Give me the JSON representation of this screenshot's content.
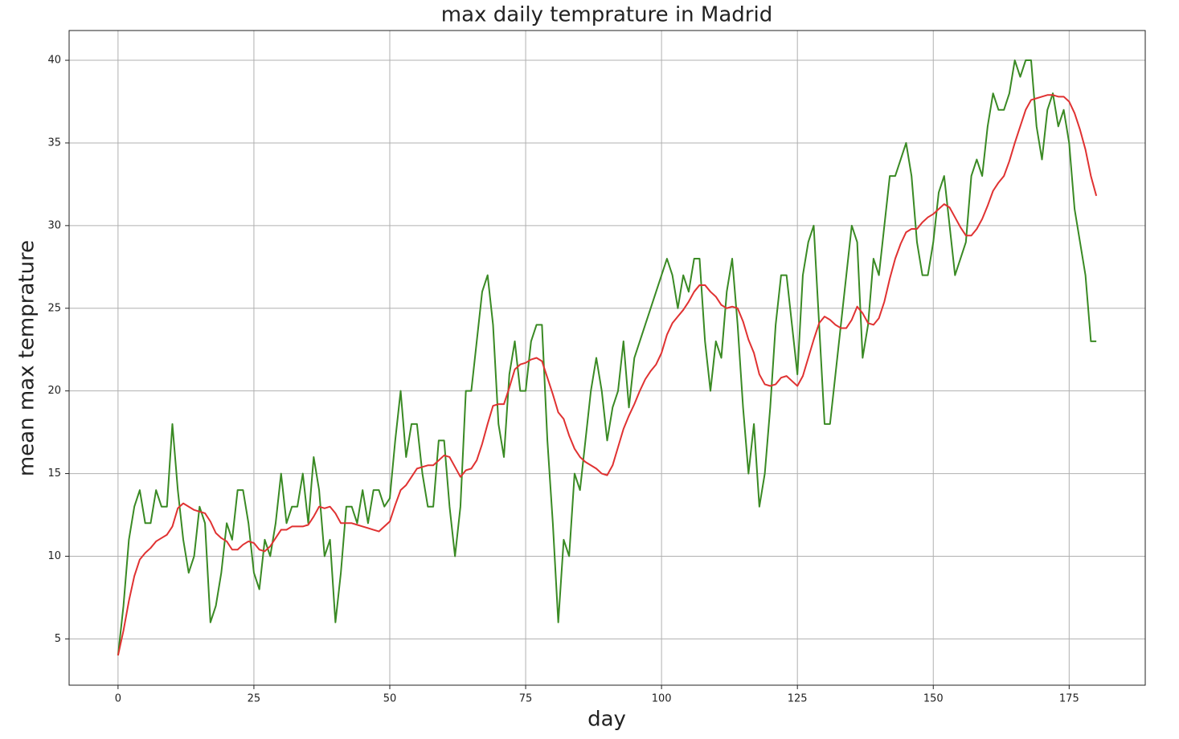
{
  "chart_data": {
    "type": "line",
    "title": "max daily temprature in Madrid",
    "x_label": "day",
    "y_label": "mean max temprature",
    "x": [
      0,
      1,
      2,
      3,
      4,
      5,
      6,
      7,
      8,
      9,
      10,
      11,
      12,
      13,
      14,
      15,
      16,
      17,
      18,
      19,
      20,
      21,
      22,
      23,
      24,
      25,
      26,
      27,
      28,
      29,
      30,
      31,
      32,
      33,
      34,
      35,
      36,
      37,
      38,
      39,
      40,
      41,
      42,
      43,
      44,
      45,
      46,
      47,
      48,
      49,
      50,
      51,
      52,
      53,
      54,
      55,
      56,
      57,
      58,
      59,
      60,
      61,
      62,
      63,
      64,
      65,
      66,
      67,
      68,
      69,
      70,
      71,
      72,
      73,
      74,
      75,
      76,
      77,
      78,
      79,
      80,
      81,
      82,
      83,
      84,
      85,
      86,
      87,
      88,
      89,
      90,
      91,
      92,
      93,
      94,
      95,
      96,
      97,
      98,
      99,
      100,
      101,
      102,
      103,
      104,
      105,
      106,
      107,
      108,
      109,
      110,
      111,
      112,
      113,
      114,
      115,
      116,
      117,
      118,
      119,
      120,
      121,
      122,
      123,
      124,
      125,
      126,
      127,
      128,
      129,
      130,
      131,
      132,
      133,
      134,
      135,
      136,
      137,
      138,
      139,
      140,
      141,
      142,
      143,
      144,
      145,
      146,
      147,
      148,
      149,
      150,
      151,
      152,
      153,
      154,
      155,
      156,
      157,
      158,
      159,
      160,
      161,
      162,
      163,
      164,
      165,
      166,
      167,
      168,
      169,
      170,
      171,
      172,
      173,
      174,
      175,
      176,
      177,
      178,
      179,
      180
    ],
    "series": [
      {
        "color": "#3a8a24",
        "values": [
          4,
          7,
          11,
          13,
          14,
          12,
          12,
          14,
          13,
          13,
          18,
          14,
          11,
          9,
          10,
          13,
          12,
          6,
          7,
          9,
          12,
          11,
          14,
          14,
          12,
          9,
          8,
          11,
          10,
          12,
          15,
          12,
          13,
          13,
          15,
          12,
          16,
          14,
          10,
          11,
          6,
          9,
          13,
          13,
          12,
          14,
          12,
          14,
          14,
          13,
          13.5,
          17,
          20,
          16,
          18,
          18,
          15,
          13,
          13,
          17,
          17,
          13,
          10,
          13,
          20,
          20,
          23,
          26,
          27,
          24,
          18,
          16,
          21,
          23,
          20,
          20,
          23,
          24,
          24,
          17,
          12,
          6,
          11,
          10,
          15,
          14,
          17,
          20,
          22,
          20,
          17,
          19,
          20,
          23,
          19,
          22,
          23,
          24,
          25,
          26,
          27,
          28,
          27,
          25,
          27,
          26,
          28,
          28,
          23,
          20,
          23,
          22,
          26,
          28,
          24,
          19,
          15,
          18,
          13,
          15,
          19,
          24,
          27,
          27,
          24,
          21,
          27,
          29,
          30,
          24,
          18,
          18,
          21,
          24,
          27,
          30,
          29,
          22,
          24,
          28,
          27,
          30,
          33,
          33,
          34,
          35,
          33,
          29,
          27,
          27,
          29,
          32,
          33,
          30,
          27,
          28,
          29,
          33,
          34,
          33,
          36,
          38,
          37,
          37,
          38,
          40,
          39,
          40,
          40,
          36,
          34,
          37,
          38,
          36,
          37,
          35,
          31,
          29,
          27,
          23,
          23
        ]
      },
      {
        "color": "#e03232",
        "values": [
          4,
          5.5,
          7.3,
          8.8,
          9.8,
          10.2,
          10.5,
          10.9,
          11.1,
          11.3,
          11.8,
          12.9,
          13.2,
          13,
          12.8,
          12.7,
          12.6,
          12.1,
          11.4,
          11.1,
          10.9,
          10.4,
          10.4,
          10.7,
          10.9,
          10.8,
          10.4,
          10.3,
          10.6,
          11.1,
          11.6,
          11.6,
          11.8,
          11.8,
          11.8,
          11.9,
          12.4,
          13,
          12.9,
          13,
          12.6,
          12,
          12,
          12,
          11.9,
          11.8,
          11.7,
          11.6,
          11.5,
          11.8,
          12.1,
          13.1,
          14,
          14.3,
          14.8,
          15.3,
          15.4,
          15.5,
          15.5,
          15.8,
          16.1,
          16,
          15.4,
          14.8,
          15.2,
          15.3,
          15.8,
          16.8,
          18,
          19.1,
          19.2,
          19.2,
          20.2,
          21.3,
          21.6,
          21.7,
          21.9,
          22,
          21.8,
          20.8,
          19.8,
          18.7,
          18.3,
          17.3,
          16.5,
          16,
          15.7,
          15.5,
          15.3,
          15,
          14.9,
          15.5,
          16.6,
          17.7,
          18.5,
          19.2,
          20,
          20.7,
          21.2,
          21.6,
          22.3,
          23.4,
          24.1,
          24.5,
          24.9,
          25.4,
          26,
          26.4,
          26.4,
          26,
          25.7,
          25.2,
          25,
          25.1,
          25,
          24.2,
          23.1,
          22.3,
          21,
          20.4,
          20.3,
          20.4,
          20.8,
          20.9,
          20.6,
          20.3,
          20.9,
          22,
          23.1,
          24.1,
          24.5,
          24.3,
          24,
          23.8,
          23.8,
          24.3,
          25.1,
          24.7,
          24.1,
          24,
          24.4,
          25.4,
          26.8,
          28,
          28.9,
          29.6,
          29.8,
          29.8,
          30.2,
          30.5,
          30.7,
          31,
          31.3,
          31.1,
          30.5,
          29.9,
          29.4,
          29.4,
          29.8,
          30.4,
          31.2,
          32.1,
          32.6,
          33,
          33.9,
          35,
          36,
          37,
          37.6,
          37.7,
          37.8,
          37.9,
          37.9,
          37.8,
          37.8,
          37.5,
          36.8,
          35.8,
          34.6,
          33,
          31.8
        ]
      }
    ],
    "xlim": [
      -9,
      189
    ],
    "ylim": [
      2.2,
      41.8
    ],
    "xticks": [
      0,
      25,
      50,
      75,
      100,
      125,
      150,
      175
    ],
    "yticks": [
      5,
      10,
      15,
      20,
      25,
      30,
      35,
      40
    ],
    "grid": true
  }
}
